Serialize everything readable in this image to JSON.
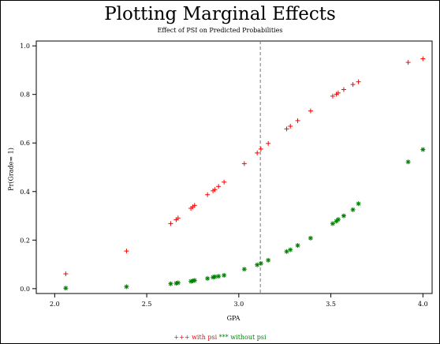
{
  "title": "Plotting Marginal Effects",
  "subtitle": "Effect of PSI on Predicted Probabilities",
  "chart_data": {
    "type": "scatter",
    "title": "Plotting Marginal Effects",
    "subtitle": "Effect of PSI on Predicted Probabilities",
    "xlabel": "GPA",
    "ylabel": "Pr(Grade= 1)",
    "xlim": [
      1.9,
      4.05
    ],
    "ylim": [
      -0.02,
      1.02
    ],
    "xticks": [
      "2.0",
      "2.5",
      "3.0",
      "3.5",
      "4.0"
    ],
    "yticks": [
      "0.0",
      "0.2",
      "0.4",
      "0.6",
      "0.8",
      "1.0"
    ],
    "reference_line_x": 3.117,
    "series": [
      {
        "name": "with psi",
        "marker": "+",
        "color": "#ff0000",
        "x": [
          2.06,
          2.39,
          2.63,
          2.66,
          2.67,
          2.74,
          2.75,
          2.76,
          2.83,
          2.86,
          2.87,
          2.89,
          2.92,
          3.03,
          3.1,
          3.12,
          3.16,
          3.26,
          3.28,
          3.32,
          3.39,
          3.51,
          3.53,
          3.54,
          3.57,
          3.62,
          3.65,
          3.92,
          4.0
        ],
        "y": [
          0.061,
          0.155,
          0.268,
          0.284,
          0.291,
          0.331,
          0.337,
          0.343,
          0.387,
          0.403,
          0.408,
          0.421,
          0.439,
          0.515,
          0.559,
          0.575,
          0.598,
          0.658,
          0.669,
          0.692,
          0.732,
          0.793,
          0.801,
          0.806,
          0.82,
          0.841,
          0.852,
          0.932,
          0.947
        ]
      },
      {
        "name": "without psi",
        "marker": "*",
        "color": "#008000",
        "x": [
          2.06,
          2.39,
          2.63,
          2.66,
          2.67,
          2.74,
          2.75,
          2.76,
          2.83,
          2.86,
          2.87,
          2.89,
          2.92,
          3.03,
          3.1,
          3.12,
          3.16,
          3.26,
          3.28,
          3.32,
          3.39,
          3.51,
          3.53,
          3.54,
          3.57,
          3.62,
          3.65,
          3.92,
          4.0
        ],
        "y": [
          0.002,
          0.008,
          0.02,
          0.022,
          0.024,
          0.03,
          0.032,
          0.034,
          0.042,
          0.047,
          0.049,
          0.051,
          0.055,
          0.08,
          0.098,
          0.104,
          0.117,
          0.153,
          0.16,
          0.178,
          0.208,
          0.268,
          0.278,
          0.285,
          0.3,
          0.325,
          0.35,
          0.522,
          0.573
        ]
      }
    ],
    "legend": "bottom"
  },
  "legend": {
    "psi_marker": "+++",
    "psi_label": "with psi",
    "nopsi_marker": "***",
    "nopsi_label": "without psi"
  }
}
